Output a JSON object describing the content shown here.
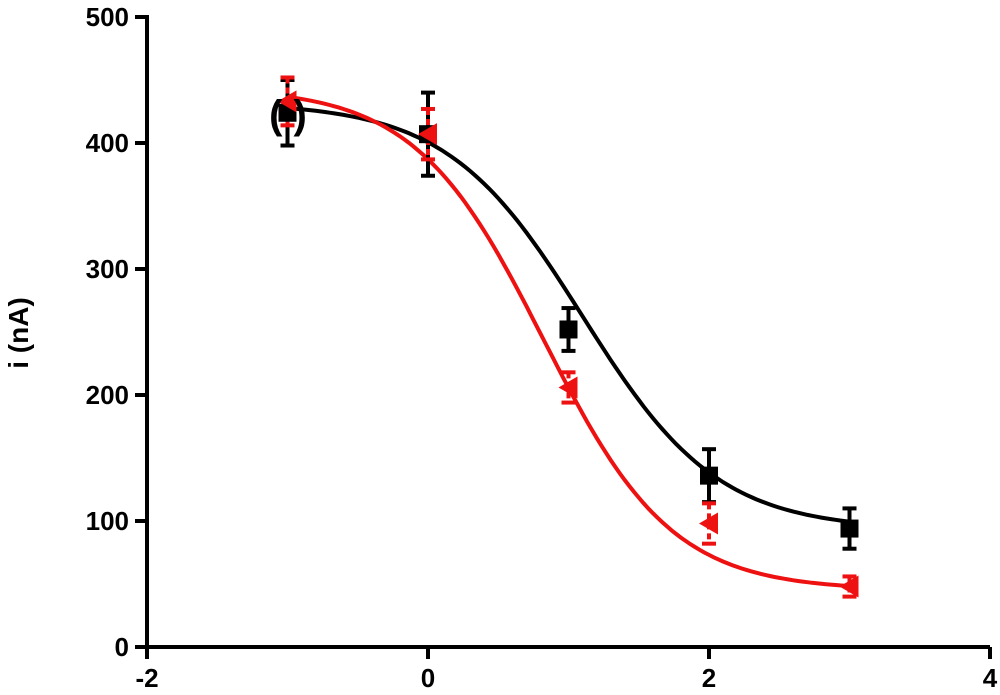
{
  "chart_data": {
    "type": "scatter",
    "xlabel": "",
    "ylabel": "i (nA)",
    "xlim": [
      -2,
      4
    ],
    "ylim": [
      0,
      500
    ],
    "xticks": [
      "-2",
      "0",
      "2",
      "4"
    ],
    "yticks": [
      "0",
      "100",
      "200",
      "300",
      "400",
      "500"
    ],
    "grid": false,
    "annotation": "( )",
    "series": [
      {
        "marker": "square",
        "color": "#000000",
        "x": [
          -1,
          0,
          1,
          2,
          3
        ],
        "y": [
          424,
          407,
          252,
          136,
          94
        ],
        "err": [
          26,
          33,
          17,
          21,
          16
        ],
        "fit": {
          "bottom": 93,
          "top": 432,
          "logEC50": 1.1,
          "hill": 0.9
        }
      },
      {
        "marker": "triangle-left",
        "color": "#ee1111",
        "x": [
          -1,
          0,
          1,
          2,
          3
        ],
        "y": [
          433,
          407,
          206,
          98,
          48
        ],
        "err": [
          19,
          20,
          12,
          16,
          8
        ],
        "fit": {
          "bottom": 45,
          "top": 444,
          "logEC50": 0.82,
          "hill": 0.95
        }
      }
    ]
  }
}
